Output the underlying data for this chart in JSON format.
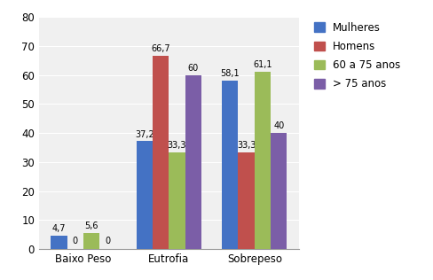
{
  "categories": [
    "Baixo Peso",
    "Eutrofia",
    "Sobrepeso"
  ],
  "series": [
    {
      "label": "Mulheres",
      "color": "#4472C4",
      "values": [
        4.7,
        37.2,
        58.1
      ]
    },
    {
      "label": "Homens",
      "color": "#C0504D",
      "values": [
        0,
        66.7,
        33.3
      ]
    },
    {
      "label": "60 a 75 anos",
      "color": "#9BBB59",
      "values": [
        5.6,
        33.3,
        61.1
      ]
    },
    {
      "label": "> 75 anos",
      "color": "#7B5EA7",
      "values": [
        0,
        60,
        40
      ]
    }
  ],
  "ylim": [
    0,
    80
  ],
  "yticks": [
    0,
    10,
    20,
    30,
    40,
    50,
    60,
    70,
    80
  ],
  "bar_width": 0.19,
  "label_fontsize": 7.0,
  "tick_fontsize": 8.5,
  "legend_fontsize": 8.5,
  "bg_color": "#FFFFFF",
  "plot_bg_color": "#F0F0F0",
  "grid_color": "#FFFFFF"
}
